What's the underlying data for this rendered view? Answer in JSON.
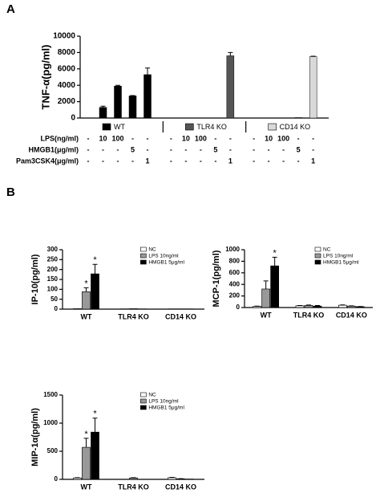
{
  "chart_data": [
    {
      "type": "group-bar",
      "panel_label": "A",
      "y_label": "TNF-α(pg/ml)",
      "ylim": [
        0,
        10000
      ],
      "yticks": [
        0,
        2000,
        4000,
        6000,
        8000,
        10000
      ],
      "series": [
        {
          "name": "WT",
          "color": "#000000",
          "values": [
            20,
            1300,
            3900,
            2700,
            5300
          ],
          "errors": [
            0,
            150,
            100,
            50,
            800
          ]
        },
        {
          "name": "TLR4 KO",
          "color": "#555555",
          "values": [
            0,
            0,
            0,
            0,
            7600
          ],
          "errors": [
            0,
            0,
            0,
            0,
            400
          ]
        },
        {
          "name": "CD14 KO",
          "color": "#d9d9d9",
          "values": [
            0,
            0,
            0,
            50,
            7500
          ],
          "errors": [
            0,
            0,
            0,
            0,
            50
          ]
        }
      ],
      "conditions": [
        {
          "name": "LPS(ng/ml)",
          "levels": [
            "-",
            "10",
            "100",
            "-",
            "-"
          ]
        },
        {
          "name": "HMGB1(μg/ml)",
          "levels": [
            "-",
            "-",
            "-",
            "5",
            "-"
          ]
        },
        {
          "name": "Pam3CSK4(μg/ml)",
          "levels": [
            "-",
            "-",
            "-",
            "-",
            "1"
          ]
        }
      ]
    },
    {
      "type": "grouped-bar",
      "panel_label": "B",
      "y_label": "IP-10(pg/ml)",
      "categories": [
        "WT",
        "TLR4 KO",
        "CD14 KO"
      ],
      "ylim": [
        0,
        300
      ],
      "yticks": [
        0,
        50,
        100,
        150,
        200,
        250,
        300
      ],
      "series": [
        {
          "name": "NC",
          "color": "#ffffff",
          "values": [
            2,
            1,
            1
          ],
          "errors": [
            0,
            0,
            0
          ],
          "markers": [
            null,
            null,
            null
          ]
        },
        {
          "name": "LPS 10ng/ml",
          "color": "#999999",
          "values": [
            88,
            2,
            1
          ],
          "errors": [
            20,
            0,
            0
          ],
          "markers": [
            "*",
            null,
            null
          ]
        },
        {
          "name": "HMGB1 5μg/ml",
          "color": "#000000",
          "values": [
            178,
            1,
            1
          ],
          "errors": [
            48,
            0,
            0
          ],
          "markers": [
            "*",
            null,
            null
          ]
        }
      ]
    },
    {
      "type": "grouped-bar",
      "y_label": "MCP-1(pg/ml)",
      "categories": [
        "WT",
        "TLR4 KO",
        "CD14 KO"
      ],
      "ylim": [
        0,
        1000
      ],
      "yticks": [
        0,
        200,
        400,
        600,
        800,
        1000
      ],
      "series": [
        {
          "name": "NC",
          "color": "#ffffff",
          "values": [
            20,
            30,
            40
          ],
          "errors": [
            5,
            5,
            5
          ],
          "markers": [
            null,
            null,
            null
          ]
        },
        {
          "name": "LPS 10ng/ml",
          "color": "#999999",
          "values": [
            320,
            35,
            25
          ],
          "errors": [
            140,
            8,
            5
          ],
          "markers": [
            null,
            null,
            null
          ]
        },
        {
          "name": "HMGB1 5μg/ml",
          "color": "#000000",
          "values": [
            720,
            25,
            15
          ],
          "errors": [
            150,
            10,
            3
          ],
          "markers": [
            "*",
            null,
            null
          ]
        }
      ]
    },
    {
      "type": "grouped-bar",
      "y_label": "MIP-1α(pg/ml)",
      "categories": [
        "WT",
        "TLR4 KO",
        "CD14 KO"
      ],
      "ylim": [
        0,
        1500
      ],
      "yticks": [
        0,
        500,
        1000,
        1500
      ],
      "series": [
        {
          "name": "NC",
          "color": "#ffffff",
          "values": [
            25,
            0,
            30
          ],
          "errors": [
            5,
            0,
            5
          ],
          "markers": [
            null,
            null,
            null
          ]
        },
        {
          "name": "LPS 10ng/ml",
          "color": "#999999",
          "values": [
            570,
            25,
            10
          ],
          "errors": [
            160,
            5,
            3
          ],
          "markers": [
            "*",
            null,
            null
          ]
        },
        {
          "name": "HMGB1 5μg/ml",
          "color": "#000000",
          "values": [
            840,
            0,
            5
          ],
          "errors": [
            250,
            0,
            0
          ],
          "markers": [
            "*",
            null,
            null
          ]
        }
      ]
    }
  ]
}
